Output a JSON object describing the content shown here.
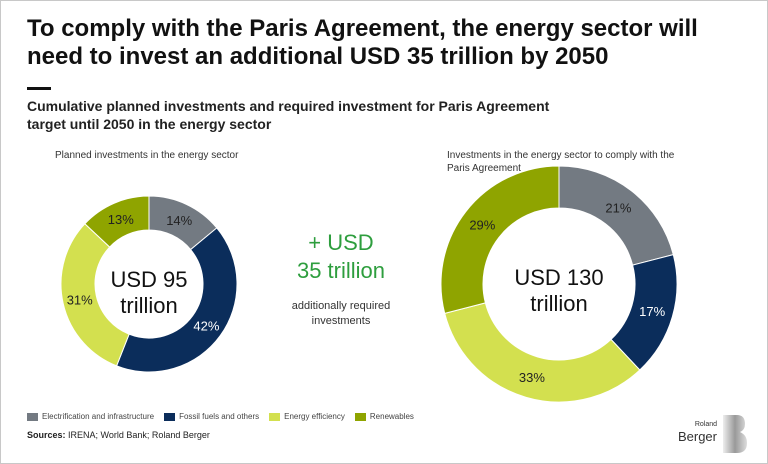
{
  "header": {
    "title": "To comply with the Paris Agreement, the energy sector will need to invest an additional USD 35 trillion by 2050",
    "subtitle": "Cumulative planned investments and required investment for Paris Agreement target until 2050 in the energy sector"
  },
  "middle": {
    "plus": "+ USD",
    "amount": "35 trillion",
    "note": "additionally required investments"
  },
  "colors": {
    "Electrification and infrastructure": "#737a82",
    "Fossil fuels and others": "#0b2d5b",
    "Energy efficiency": "#d3e04f",
    "Renewables": "#8fa400"
  },
  "chart_data": [
    {
      "type": "pie",
      "title": "Planned investments in the energy sector",
      "center_line1": "USD 95",
      "center_line2": "trillion",
      "total": 95,
      "categories": [
        "Electrification and infrastructure",
        "Fossil fuels and others",
        "Energy efficiency",
        "Renewables"
      ],
      "values": [
        14,
        42,
        31,
        13
      ],
      "labels": [
        "14%",
        "42%",
        "31%",
        "13%"
      ]
    },
    {
      "type": "pie",
      "title": "Investments in the energy sector to comply with the Paris Agreement",
      "center_line1": "USD 130",
      "center_line2": "trillion",
      "total": 130,
      "categories": [
        "Electrification and infrastructure",
        "Fossil fuels and others",
        "Energy efficiency",
        "Renewables"
      ],
      "values": [
        21,
        17,
        33,
        29
      ],
      "labels": [
        "21%",
        "17%",
        "33%",
        "29%"
      ]
    }
  ],
  "legend": [
    "Electrification and infrastructure",
    "Fossil fuels and others",
    "Energy efficiency",
    "Renewables"
  ],
  "sources": {
    "label": "Sources:",
    "text": " IRENA; World Bank; Roland Berger"
  },
  "logo": {
    "line1": "Roland",
    "line2": "Berger"
  }
}
